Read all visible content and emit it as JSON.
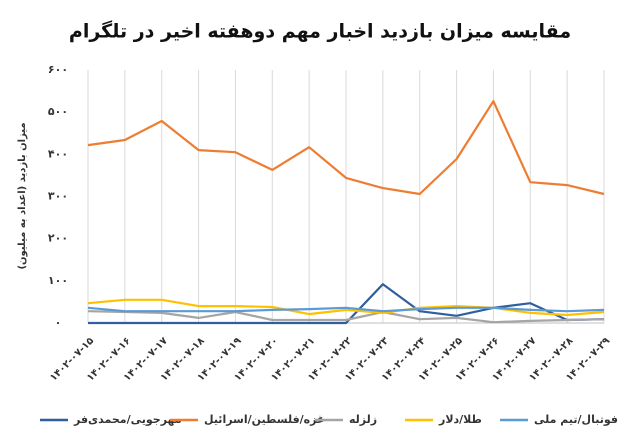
{
  "chart_data": {
    "type": "line",
    "title": "مقایسه میزان بازدید اخبار مهم دوهفته اخیر در تلگرام",
    "y_label": "میزان بازدید (اعداد به میلیون)",
    "categories": [
      "۱۴۰۲-۰۷-۱۵",
      "۱۴۰۲-۰۷-۱۶",
      "۱۴۰۲-۰۷-۱۷",
      "۱۴۰۲-۰۷-۱۸",
      "۱۴۰۲-۰۷-۱۹",
      "۱۴۰۲-۰۷-۲۰",
      "۱۴۰۲-۰۷-۲۱",
      "۱۴۰۲-۰۷-۲۲",
      "۱۴۰۲-۰۷-۲۳",
      "۱۴۰۲-۰۷-۲۴",
      "۱۴۰۲-۰۷-۲۵",
      "۱۴۰۲-۰۷-۲۶",
      "۱۴۰۲-۰۷-۲۷",
      "۱۴۰۲-۰۷-۲۸",
      "۱۴۰۲-۰۷-۲۹"
    ],
    "series": [
      {
        "name": "مهرجویی/محمدی‌فر",
        "color": "#2f5f9e",
        "values": [
          0,
          0,
          0,
          0,
          0,
          0,
          0,
          0,
          92,
          28,
          17,
          36,
          47,
          7,
          9
        ]
      },
      {
        "name": "غزه/فلسطین/اسرائیل",
        "color": "#ed7d31",
        "values": [
          422,
          434,
          479,
          410,
          405,
          363,
          417,
          344,
          320,
          306,
          389,
          526,
          334,
          327,
          306
        ]
      },
      {
        "name": "زلزله",
        "color": "#a5a5a5",
        "values": [
          28,
          26,
          24,
          12,
          26,
          7,
          7,
          7,
          26,
          9,
          12,
          2,
          5,
          7,
          9
        ]
      },
      {
        "name": "طلا/دلار",
        "color": "#ffc000",
        "values": [
          47,
          55,
          55,
          40,
          40,
          38,
          21,
          31,
          24,
          36,
          40,
          36,
          24,
          19,
          26
        ]
      },
      {
        "name": "فوتبال/تیم ملی",
        "color": "#5b9bd5",
        "values": [
          36,
          28,
          28,
          28,
          28,
          31,
          33,
          36,
          28,
          33,
          36,
          36,
          31,
          28,
          31
        ]
      }
    ],
    "ylim": [
      0,
      600
    ],
    "yticks": [
      {
        "value": 0,
        "label": "۰"
      },
      {
        "value": 100,
        "label": "۱۰۰"
      },
      {
        "value": 200,
        "label": "۲۰۰"
      },
      {
        "value": 300,
        "label": "۳۰۰"
      },
      {
        "value": 400,
        "label": "۴۰۰"
      },
      {
        "value": 500,
        "label": "۵۰۰"
      },
      {
        "value": 600,
        "label": "۶۰۰"
      }
    ],
    "grid": "x",
    "legend": "bottom"
  }
}
